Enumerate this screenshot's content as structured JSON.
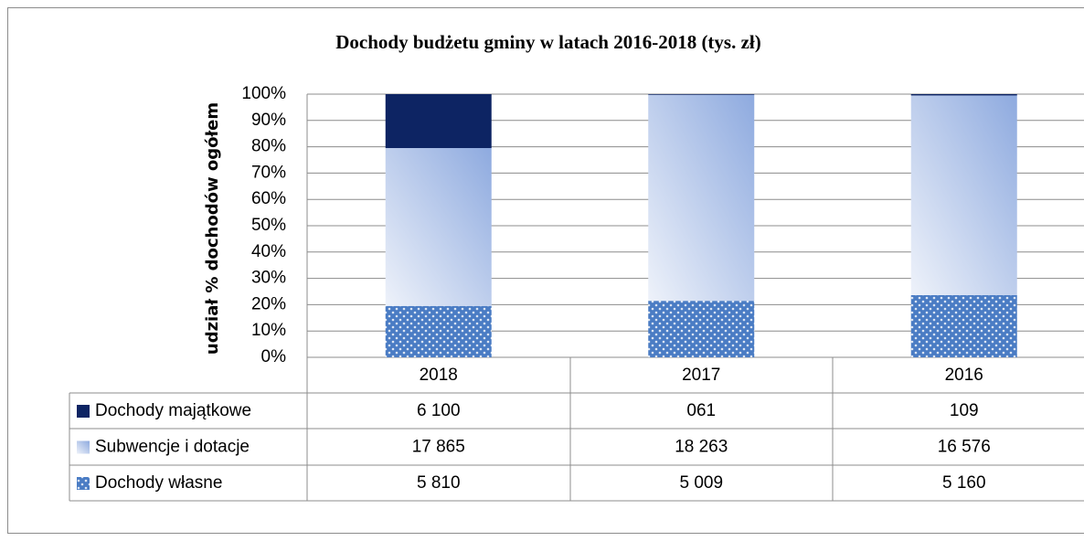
{
  "chart_data": {
    "type": "bar",
    "stacked": "percent",
    "title": "Dochody budżetu gminy w latach 2016-2018 (tys. zł)",
    "y_label": "udział % dochodów ogółem",
    "categories": [
      "2018",
      "2017",
      "2016"
    ],
    "series": [
      {
        "name": "Dochody majątkowe",
        "color": "#0d2463",
        "values": [
          6100,
          61,
          109
        ],
        "value_labels": [
          "6 100",
          "061",
          "109"
        ]
      },
      {
        "name": "Subwencje i dotacje",
        "color": "#8eaadf",
        "values": [
          17865,
          18263,
          16576
        ],
        "value_labels": [
          "17 865",
          "18 263",
          "16 576"
        ]
      },
      {
        "name": "Dochody własne",
        "color": "#4a7cc4",
        "values": [
          5810,
          5009,
          5160
        ],
        "value_labels": [
          "5 810",
          "5 009",
          "5 160"
        ]
      }
    ],
    "ylim": [
      0,
      100
    ],
    "yticks": [
      {
        "value": 0,
        "label": "0%"
      },
      {
        "value": 10,
        "label": "10%"
      },
      {
        "value": 20,
        "label": "20%"
      },
      {
        "value": 30,
        "label": "30%"
      },
      {
        "value": 40,
        "label": "40%"
      },
      {
        "value": 50,
        "label": "50%"
      },
      {
        "value": 60,
        "label": "60%"
      },
      {
        "value": 70,
        "label": "70%"
      },
      {
        "value": 80,
        "label": "80%"
      },
      {
        "value": 90,
        "label": "90%"
      },
      {
        "value": 100,
        "label": "100%"
      }
    ],
    "grid": true
  }
}
